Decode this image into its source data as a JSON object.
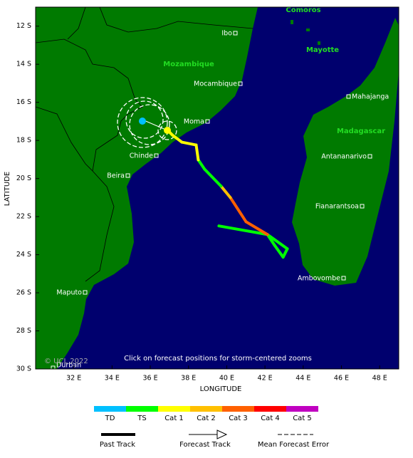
{
  "map": {
    "xlim": [
      30,
      49
    ],
    "ylim": [
      11,
      30
    ],
    "xticks": [
      {
        "value": 32,
        "label": "32 E"
      },
      {
        "value": 34,
        "label": "34 E"
      },
      {
        "value": 36,
        "label": "36 E"
      },
      {
        "value": 38,
        "label": "38 E"
      },
      {
        "value": 40,
        "label": "40 E"
      },
      {
        "value": 42,
        "label": "42 E"
      },
      {
        "value": 44,
        "label": "44 E"
      },
      {
        "value": 46,
        "label": "46 E"
      },
      {
        "value": 48,
        "label": "48 E"
      }
    ],
    "yticks": [
      {
        "value": 12,
        "label": "12 S"
      },
      {
        "value": 14,
        "label": "14 S"
      },
      {
        "value": 16,
        "label": "16 S"
      },
      {
        "value": 18,
        "label": "18 S"
      },
      {
        "value": 20,
        "label": "20 S"
      },
      {
        "value": 22,
        "label": "22 S"
      },
      {
        "value": 24,
        "label": "24 S"
      },
      {
        "value": 26,
        "label": "26 S"
      },
      {
        "value": 28,
        "label": "28 S"
      },
      {
        "value": 30,
        "label": "30 S"
      }
    ],
    "xlabel": "LONGITUDE",
    "ylabel": "LATITUDE",
    "countries": [
      "Comoros",
      "Mozambique",
      "Mayotte",
      "Madagascar"
    ],
    "cities": [
      "Ibo",
      "Mocambique",
      "Moma",
      "Chinde",
      "Beira",
      "Maputo",
      "Durban",
      "Mahajanga",
      "Antananarivo",
      "Fianarantsoa",
      "Ambovombe"
    ],
    "copyright": "© UCL 2022",
    "note": "Click on forecast positions for storm-centered zooms",
    "track": {
      "lon": [
        39.59,
        42.13,
        42.5,
        42.95,
        43.17,
        42.13,
        41.01,
        40.19,
        39.7,
        38.84,
        38.51,
        38.4,
        37.65,
        37.16,
        36.9
      ],
      "lat": [
        22.49,
        22.94,
        23.5,
        24.13,
        23.69,
        22.94,
        22.27,
        21.0,
        20.4,
        19.51,
        19.02,
        18.24,
        18.09,
        17.72,
        17.46
      ],
      "colors": [
        "#00ff00",
        "#00ff00",
        "#00ff00",
        "#00ff00",
        "#00ff00",
        "#ff6000",
        "#ff6000",
        "#ffc000",
        "#00ff00",
        "#00ff00",
        "#ffff00",
        "#ffff00",
        "#ffff00",
        "#ffff00"
      ]
    }
  },
  "legend": {
    "categories": [
      "TD",
      "TS",
      "Cat 1",
      "Cat 2",
      "Cat 3",
      "Cat 4",
      "Cat 5"
    ],
    "colors": [
      "#00c0ff",
      "#00ff00",
      "#ffff00",
      "#ffc000",
      "#ff6000",
      "#ff0000",
      "#c000c0"
    ],
    "past_track": "Past Track",
    "forecast_track": "Forecast Track",
    "error": "Mean Forecast Error"
  }
}
